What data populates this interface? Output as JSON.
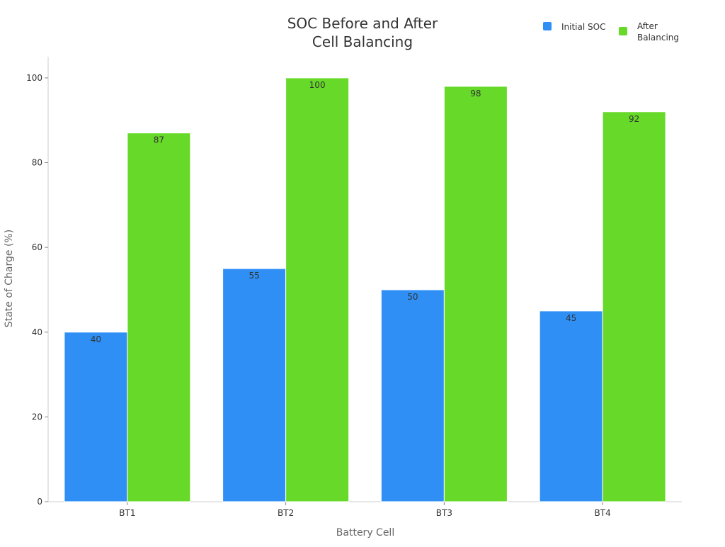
{
  "chart_data": {
    "type": "bar",
    "title_lines": [
      "SOC Before and After",
      "Cell Balancing"
    ],
    "xlabel": "Battery Cell",
    "ylabel": "State of Charge (%)",
    "categories": [
      "BT1",
      "BT2",
      "BT3",
      "BT4"
    ],
    "series": [
      {
        "name": "Initial SOC",
        "color": "#2f8ff5",
        "values": [
          40,
          55,
          50,
          45
        ]
      },
      {
        "name_lines": [
          "After",
          "Balancing"
        ],
        "color": "#66d929",
        "values": [
          87,
          100,
          98,
          92
        ]
      }
    ],
    "ylim": [
      0,
      105
    ],
    "yticks": [
      0,
      20,
      40,
      60,
      80,
      100
    ],
    "grid": false,
    "legend_position": "top-right",
    "data_labels": true
  }
}
